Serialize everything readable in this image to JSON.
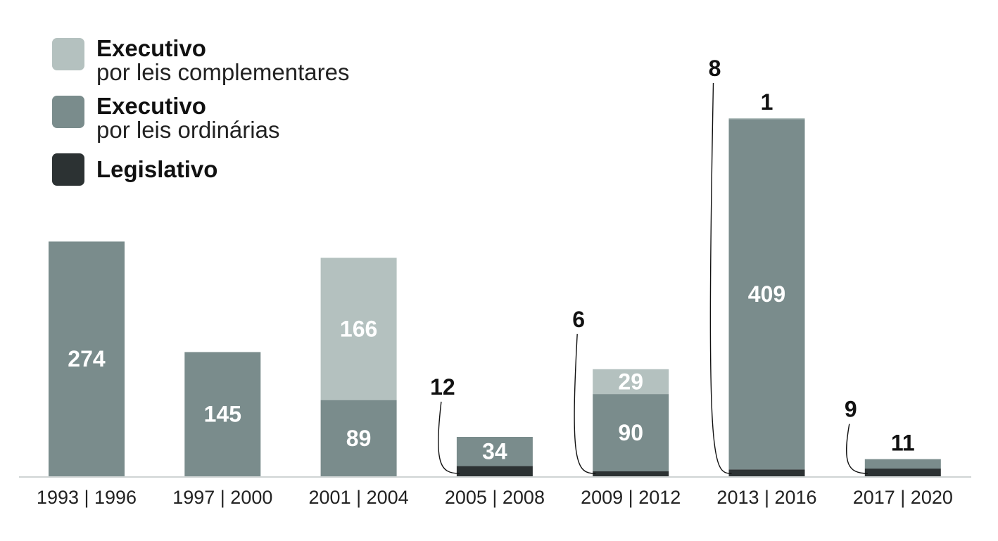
{
  "chart_data": {
    "type": "bar",
    "stacked": true,
    "title": "",
    "xlabel": "",
    "ylabel": "",
    "categories": [
      "1993 | 1996",
      "1997 | 2000",
      "2001 | 2004",
      "2005 | 2008",
      "2009 | 2012",
      "2013 | 2016",
      "2017 | 2020"
    ],
    "series": [
      {
        "key": "legislativo",
        "name": "Legislativo",
        "values": [
          0,
          0,
          0,
          12,
          6,
          8,
          9
        ]
      },
      {
        "key": "ordinarias",
        "name": "Executivo por leis ordinárias",
        "values": [
          274,
          145,
          89,
          34,
          90,
          409,
          11
        ]
      },
      {
        "key": "complementares",
        "name": "Executivo por leis complementares",
        "values": [
          0,
          0,
          166,
          0,
          29,
          1,
          0
        ]
      }
    ],
    "data_labels": {
      "legislativo": [
        "",
        "",
        "",
        "12",
        "6",
        "8",
        "9"
      ],
      "ordinarias": [
        "274",
        "145",
        "89",
        "34",
        "90",
        "409",
        "11"
      ],
      "complementares": [
        "",
        "",
        "166",
        "",
        "29",
        "1",
        ""
      ]
    },
    "ylim": [
      0,
      418
    ],
    "grid": false,
    "legend_position": "top-left"
  },
  "legend": {
    "complementares": {
      "title": "Executivo",
      "subtitle": "por leis complementares"
    },
    "ordinarias": {
      "title": "Executivo",
      "subtitle": "por leis ordinárias"
    },
    "legislativo": {
      "title": "Legislativo"
    }
  },
  "colors": {
    "complementares": "#b4c1bf",
    "ordinarias": "#7a8c8c",
    "legislativo": "#2c3233",
    "axis": "#cfd4d4",
    "inside_label": "#ffffff",
    "outside_label": "#111111"
  }
}
